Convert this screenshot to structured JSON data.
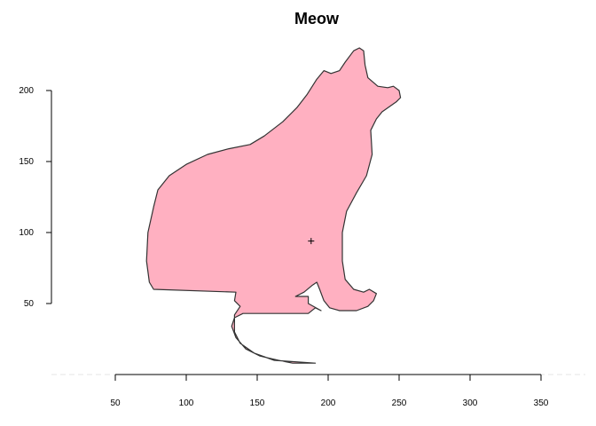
{
  "chart_data": {
    "type": "polygon",
    "title": "Meow",
    "xlabel": "",
    "ylabel": "",
    "x_ticks": [
      50,
      100,
      150,
      200,
      250,
      300,
      350
    ],
    "y_ticks": [
      50,
      100,
      150,
      200
    ],
    "xlim": [
      50,
      350
    ],
    "ylim": [
      0,
      230
    ],
    "fill_color": "#FFB0C1",
    "stroke_color": "#333333",
    "centroid": {
      "x": 188,
      "y": 94
    },
    "outline": [
      [
        191,
        8
      ],
      [
        175,
        8
      ],
      [
        165,
        10
      ],
      [
        152,
        13
      ],
      [
        142,
        18
      ],
      [
        135,
        26
      ],
      [
        132,
        34
      ],
      [
        134,
        40
      ],
      [
        140,
        43
      ],
      [
        160,
        43
      ],
      [
        186,
        43
      ],
      [
        191,
        47
      ],
      [
        195,
        45
      ],
      [
        186,
        50
      ],
      [
        186,
        55
      ],
      [
        177,
        55
      ],
      [
        183,
        58
      ],
      [
        189,
        63
      ],
      [
        192,
        65
      ],
      [
        194,
        60
      ],
      [
        197,
        52
      ],
      [
        201,
        47
      ],
      [
        208,
        45
      ],
      [
        220,
        45
      ],
      [
        228,
        48
      ],
      [
        232,
        52
      ],
      [
        234,
        57
      ],
      [
        229,
        60
      ],
      [
        225,
        58
      ],
      [
        218,
        60
      ],
      [
        212,
        67
      ],
      [
        210,
        80
      ],
      [
        210,
        100
      ],
      [
        213,
        115
      ],
      [
        220,
        128
      ],
      [
        227,
        140
      ],
      [
        231,
        155
      ],
      [
        230,
        172
      ],
      [
        234,
        180
      ],
      [
        238,
        185
      ],
      [
        248,
        192
      ],
      [
        251,
        195
      ],
      [
        250,
        200
      ],
      [
        246,
        203
      ],
      [
        242,
        202
      ],
      [
        235,
        203
      ],
      [
        228,
        209
      ],
      [
        226,
        218
      ],
      [
        225,
        228
      ],
      [
        222,
        230
      ],
      [
        218,
        228
      ],
      [
        212,
        220
      ],
      [
        208,
        214
      ],
      [
        202,
        212
      ],
      [
        197,
        214
      ],
      [
        192,
        208
      ],
      [
        185,
        197
      ],
      [
        178,
        188
      ],
      [
        168,
        178
      ],
      [
        155,
        168
      ],
      [
        145,
        162
      ],
      [
        130,
        159
      ],
      [
        115,
        155
      ],
      [
        100,
        148
      ],
      [
        88,
        140
      ],
      [
        80,
        130
      ],
      [
        77,
        118
      ],
      [
        73,
        100
      ],
      [
        72,
        80
      ],
      [
        74,
        65
      ],
      [
        77,
        60
      ],
      [
        135,
        58
      ],
      [
        134,
        52
      ],
      [
        138,
        48
      ],
      [
        134,
        42
      ],
      [
        134,
        30
      ],
      [
        138,
        22
      ],
      [
        148,
        15
      ],
      [
        162,
        10
      ]
    ]
  }
}
